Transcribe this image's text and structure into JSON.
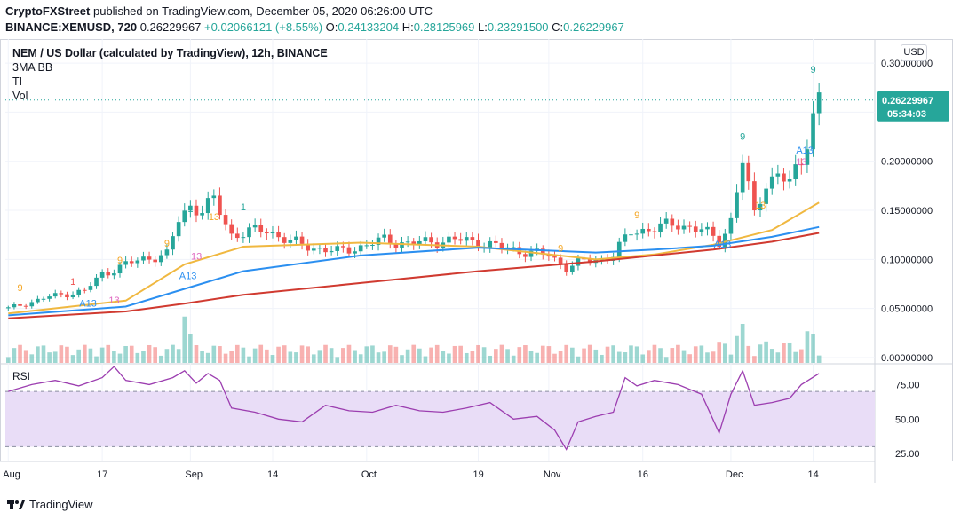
{
  "header": {
    "publisher": "CryptoFXStreet",
    "published_text": "published on TradingView.com, December 05, 2020 06:26:00 UTC",
    "symbol_line": "BINANCE:XEMUSD, 720",
    "last": "0.26229967",
    "change": "+0.02066121 (+8.55%)",
    "o_label": "O:",
    "o_value": "0.24133204",
    "h_label": "H:",
    "h_value": "0.28125969",
    "l_label": "L:",
    "l_value": "0.23291500",
    "c_label": "C:",
    "c_value": "0.26229967"
  },
  "legend": {
    "title": "NEM / US Dollar (calculated by TradingView), 12h, BINANCE",
    "indicators": [
      "3MA BB",
      "TI",
      "Vol"
    ]
  },
  "currency_button": "USD",
  "rsi_label": "RSI",
  "price_badge": {
    "value": "0.26229967",
    "countdown": "05:34:03",
    "color": "#26a69a"
  },
  "footer": {
    "brand": "TradingView"
  },
  "colors": {
    "up": "#26a69a",
    "down": "#ef5350",
    "ma_fast": "#f0b840",
    "ma_mid": "#2b8ff0",
    "ma_slow": "#d03a30",
    "rsi": "#9c3eb0",
    "rsi_band": "#e9ddf7",
    "grid": "#f0f3fa"
  },
  "chart_data": [
    {
      "type": "candlestick",
      "title": "NEM / US Dollar (calculated by TradingView), 12h, BINANCE",
      "ylim": [
        0,
        0.31
      ],
      "yticks": [
        "0.00000000",
        "0.05000000",
        "0.10000000",
        "0.15000000",
        "0.20000000",
        "0.25000000",
        "0.30000000"
      ],
      "xticks": [
        "Aug",
        "17",
        "Sep",
        "14",
        "Oct",
        "19",
        "Nov",
        "16",
        "Dec",
        "14"
      ],
      "last_price": 0.26229967,
      "close_series": [
        {
          "day": 0,
          "close": 0.05
        },
        {
          "day": 7,
          "close": 0.062
        },
        {
          "day": 13,
          "close": 0.068
        },
        {
          "day": 16,
          "close": 0.085
        },
        {
          "day": 20,
          "close": 0.095
        },
        {
          "day": 24,
          "close": 0.102
        },
        {
          "day": 27,
          "close": 0.105
        },
        {
          "day": 29,
          "close": 0.14
        },
        {
          "day": 31,
          "close": 0.155
        },
        {
          "day": 33,
          "close": 0.15
        },
        {
          "day": 35,
          "close": 0.16
        },
        {
          "day": 38,
          "close": 0.125
        },
        {
          "day": 41,
          "close": 0.128
        },
        {
          "day": 44,
          "close": 0.13
        },
        {
          "day": 48,
          "close": 0.118
        },
        {
          "day": 52,
          "close": 0.112
        },
        {
          "day": 56,
          "close": 0.108
        },
        {
          "day": 60,
          "close": 0.113
        },
        {
          "day": 64,
          "close": 0.12
        },
        {
          "day": 68,
          "close": 0.116
        },
        {
          "day": 72,
          "close": 0.118
        },
        {
          "day": 76,
          "close": 0.12
        },
        {
          "day": 80,
          "close": 0.118
        },
        {
          "day": 84,
          "close": 0.112
        },
        {
          "day": 88,
          "close": 0.108
        },
        {
          "day": 92,
          "close": 0.104
        },
        {
          "day": 95,
          "close": 0.092
        },
        {
          "day": 98,
          "close": 0.098
        },
        {
          "day": 101,
          "close": 0.1
        },
        {
          "day": 103,
          "close": 0.105
        },
        {
          "day": 106,
          "close": 0.128
        },
        {
          "day": 110,
          "close": 0.132
        },
        {
          "day": 114,
          "close": 0.136
        },
        {
          "day": 118,
          "close": 0.13
        },
        {
          "day": 121,
          "close": 0.118
        },
        {
          "day": 123,
          "close": 0.14
        },
        {
          "day": 125,
          "close": 0.2
        },
        {
          "day": 127,
          "close": 0.145
        },
        {
          "day": 129,
          "close": 0.18
        },
        {
          "day": 131,
          "close": 0.185
        },
        {
          "day": 133,
          "close": 0.178
        },
        {
          "day": 135,
          "close": 0.2
        },
        {
          "day": 137,
          "close": 0.25
        },
        {
          "day": 138,
          "close": 0.262
        }
      ],
      "series": [
        {
          "name": "MA fast",
          "points": [
            [
              0,
              0.045
            ],
            [
              20,
              0.058
            ],
            [
              30,
              0.095
            ],
            [
              40,
              0.113
            ],
            [
              60,
              0.117
            ],
            [
              80,
              0.113
            ],
            [
              100,
              0.1
            ],
            [
              110,
              0.105
            ],
            [
              120,
              0.115
            ],
            [
              130,
              0.13
            ],
            [
              138,
              0.158
            ]
          ]
        },
        {
          "name": "MA mid",
          "points": [
            [
              0,
              0.043
            ],
            [
              20,
              0.052
            ],
            [
              30,
              0.07
            ],
            [
              40,
              0.088
            ],
            [
              60,
              0.104
            ],
            [
              80,
              0.112
            ],
            [
              100,
              0.107
            ],
            [
              110,
              0.11
            ],
            [
              120,
              0.114
            ],
            [
              130,
              0.123
            ],
            [
              138,
              0.133
            ]
          ]
        },
        {
          "name": "MA slow",
          "points": [
            [
              0,
              0.04
            ],
            [
              20,
              0.047
            ],
            [
              30,
              0.055
            ],
            [
              40,
              0.064
            ],
            [
              60,
              0.076
            ],
            [
              80,
              0.088
            ],
            [
              100,
              0.098
            ],
            [
              110,
              0.104
            ],
            [
              120,
              0.11
            ],
            [
              130,
              0.118
            ],
            [
              138,
              0.127
            ]
          ]
        }
      ],
      "signal_labels": [
        {
          "day": 2,
          "y": 0.068,
          "text": "9",
          "color": "#f5a623"
        },
        {
          "day": 11,
          "y": 0.074,
          "text": "1",
          "color": "#ef5350"
        },
        {
          "day": 19,
          "y": 0.096,
          "text": "9",
          "color": "#f5a623"
        },
        {
          "day": 27,
          "y": 0.113,
          "text": "9",
          "color": "#f5a623"
        },
        {
          "day": 31,
          "y": 0.148,
          "text": "1",
          "color": "#26a69a"
        },
        {
          "day": 40,
          "y": 0.15,
          "text": "1",
          "color": "#26a69a"
        },
        {
          "day": 94,
          "y": 0.108,
          "text": "9",
          "color": "#f5a623"
        },
        {
          "day": 107,
          "y": 0.142,
          "text": "9",
          "color": "#f5a623"
        },
        {
          "day": 125,
          "y": 0.222,
          "text": "9",
          "color": "#26a69a"
        },
        {
          "day": 137,
          "y": 0.29,
          "text": "9",
          "color": "#26a69a"
        }
      ],
      "count_labels": [
        {
          "day": 13,
          "y": 0.052,
          "text": "A13",
          "color": "#2b8ff0"
        },
        {
          "day": 18,
          "y": 0.055,
          "text": "13",
          "color": "#e066c0"
        },
        {
          "day": 30,
          "y": 0.08,
          "text": "A13",
          "color": "#2b8ff0"
        },
        {
          "day": 32,
          "y": 0.1,
          "text": "13",
          "color": "#e066c0"
        },
        {
          "day": 35,
          "y": 0.14,
          "text": "13",
          "color": "#f5a623"
        },
        {
          "day": 121,
          "y": 0.112,
          "text": "A13",
          "color": "#2b8ff0"
        },
        {
          "day": 128,
          "y": 0.152,
          "text": "13",
          "color": "#f5a623"
        },
        {
          "day": 135,
          "y": 0.208,
          "text": "A13",
          "color": "#2b8ff0"
        },
        {
          "day": 135,
          "y": 0.196,
          "text": "13",
          "color": "#e066c0"
        }
      ],
      "volume_relative": [
        {
          "day": 30,
          "v": 0.95
        },
        {
          "day": 31,
          "v": 0.6
        },
        {
          "day": 125,
          "v": 0.8
        },
        {
          "day": 124,
          "v": 0.55
        },
        {
          "day": 136,
          "v": 0.65
        },
        {
          "day": 137,
          "v": 0.6
        }
      ]
    },
    {
      "type": "line",
      "title": "RSI",
      "ylim": [
        20,
        90
      ],
      "yticks": [
        "25.00",
        "50.00",
        "75.00"
      ],
      "band": [
        30,
        70
      ],
      "points": [
        [
          0,
          70
        ],
        [
          4,
          75
        ],
        [
          8,
          78
        ],
        [
          12,
          74
        ],
        [
          16,
          80
        ],
        [
          18,
          88
        ],
        [
          20,
          78
        ],
        [
          24,
          75
        ],
        [
          28,
          80
        ],
        [
          30,
          85
        ],
        [
          32,
          76
        ],
        [
          34,
          83
        ],
        [
          36,
          78
        ],
        [
          38,
          58
        ],
        [
          42,
          55
        ],
        [
          46,
          50
        ],
        [
          50,
          48
        ],
        [
          54,
          60
        ],
        [
          58,
          56
        ],
        [
          62,
          55
        ],
        [
          66,
          60
        ],
        [
          70,
          56
        ],
        [
          74,
          55
        ],
        [
          78,
          58
        ],
        [
          82,
          62
        ],
        [
          86,
          50
        ],
        [
          90,
          52
        ],
        [
          93,
          42
        ],
        [
          95,
          28
        ],
        [
          97,
          48
        ],
        [
          100,
          52
        ],
        [
          103,
          55
        ],
        [
          105,
          80
        ],
        [
          107,
          74
        ],
        [
          110,
          78
        ],
        [
          114,
          75
        ],
        [
          118,
          68
        ],
        [
          121,
          40
        ],
        [
          123,
          68
        ],
        [
          125,
          85
        ],
        [
          127,
          60
        ],
        [
          130,
          62
        ],
        [
          133,
          65
        ],
        [
          135,
          75
        ],
        [
          138,
          83
        ]
      ]
    }
  ]
}
